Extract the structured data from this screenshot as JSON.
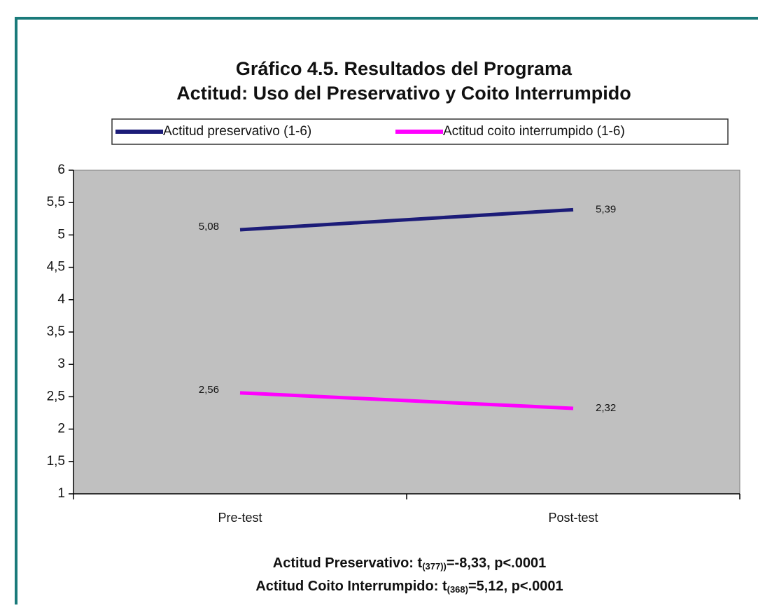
{
  "chart_data": {
    "type": "line",
    "title": [
      "Gráfico 4.5. Resultados del Programa",
      "Actitud: Uso del Preservativo y Coito Interrumpido"
    ],
    "categories": [
      "Pre-test",
      "Post-test"
    ],
    "series": [
      {
        "name": "Actitud preservativo (1-6)",
        "color": "#1c1c78",
        "values": [
          5.08,
          5.39
        ],
        "value_labels": [
          "5,08",
          "5,39"
        ]
      },
      {
        "name": "Actitud coito interrumpido (1-6)",
        "color": "#ff00ff",
        "values": [
          2.56,
          2.32
        ],
        "value_labels": [
          "2,56",
          "2,32"
        ]
      }
    ],
    "ylim": [
      1,
      6
    ],
    "yticks": [
      1,
      {
        "value": 1.5,
        "label": "1,5"
      },
      2,
      {
        "value": 2.5,
        "label": "2,5"
      },
      3,
      {
        "value": 3.5,
        "label": "3,5"
      },
      4,
      {
        "value": 4.5,
        "label": "4,5"
      },
      5,
      {
        "value": 5.5,
        "label": "5,5"
      },
      6
    ],
    "legend": "top",
    "plot_background": "#c0c0c0",
    "annotations": [
      {
        "prefix": "Actitud Preservativo: t",
        "subscript": "(377))",
        "suffix": "=-8,33, p<.0001"
      },
      {
        "prefix": "Actitud Coito Interrumpido: t",
        "subscript": "(368)",
        "suffix": "=5,12, p<.0001"
      }
    ]
  }
}
